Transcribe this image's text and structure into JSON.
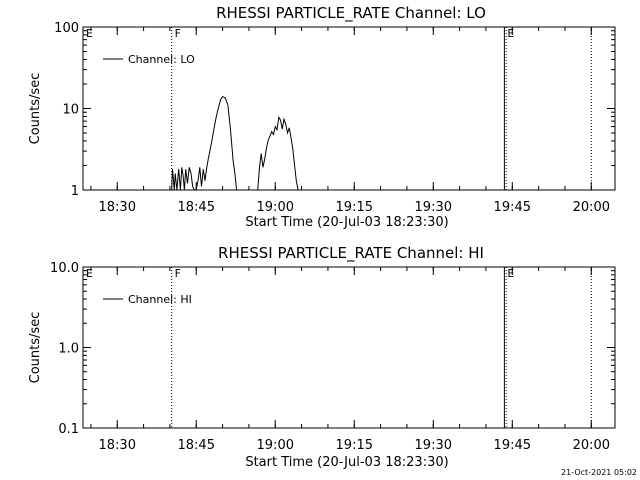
{
  "timestamp": "21-Oct-2021 05:02",
  "chart_data": [
    {
      "type": "line",
      "title": "RHESSI PARTICLE_RATE Channel: LO",
      "xlabel": "Start Time (20-Jul-03 18:23:30)",
      "ylabel": "Counts/sec",
      "yscale": "log",
      "ylim": [
        1,
        100
      ],
      "yticks": [
        "1",
        "10",
        "100"
      ],
      "xlim": [
        "18:23:30",
        "20:04:30"
      ],
      "xticks": [
        "18:30",
        "18:45",
        "19:00",
        "19:15",
        "19:30",
        "19:45",
        "20:00"
      ],
      "legend": "Channel: LO",
      "legend_position": "top-left",
      "grid": false,
      "markers": [
        {
          "label": "E",
          "time": "18:23:30",
          "style": "solid"
        },
        {
          "label": "F",
          "time": "18:40:20",
          "style": "dotted"
        },
        {
          "label": "E",
          "time": "19:43:30",
          "style": "solid"
        },
        {
          "label": "",
          "time": "19:43:50",
          "style": "dotted"
        },
        {
          "label": "",
          "time": "20:00:00",
          "style": "dotted"
        }
      ],
      "series": [
        {
          "name": "Channel: LO",
          "x": [
            "18:40:20",
            "18:40:30",
            "18:40:50",
            "18:41:00",
            "18:41:20",
            "18:41:40",
            "18:42:00",
            "18:42:15",
            "18:42:30",
            "18:42:45",
            "18:43:00",
            "18:43:20",
            "18:43:40",
            "18:44:00",
            "18:44:20",
            "18:44:40",
            "18:45:00",
            "18:45:20",
            "18:45:40",
            "18:46:00",
            "18:46:20",
            "18:46:40",
            "18:47:00",
            "18:47:20",
            "18:47:40",
            "18:48:00",
            "18:48:20",
            "18:48:40",
            "18:49:00",
            "18:49:20",
            "18:49:40",
            "18:50:00",
            "18:50:30",
            "18:51:00",
            "18:51:30",
            "18:52:00",
            "18:52:20",
            "18:52:40",
            "18:53:00",
            "18:53:20",
            "18:53:40",
            "18:54:00",
            "18:54:20",
            "18:54:40",
            "18:55:00",
            "18:56:40",
            "18:57:00",
            "18:57:20",
            "18:57:40",
            "18:58:00",
            "18:58:20",
            "18:58:40",
            "18:59:00",
            "18:59:20",
            "18:59:40",
            "19:00:00",
            "19:00:20",
            "19:00:40",
            "19:01:00",
            "19:01:20",
            "19:01:40",
            "19:02:00",
            "19:02:20",
            "19:02:40",
            "19:03:00",
            "19:03:20",
            "19:03:40",
            "19:04:00",
            "19:04:20"
          ],
          "values": [
            1,
            1.8,
            1,
            1.6,
            1,
            1.8,
            1,
            1.9,
            1.5,
            1,
            1.8,
            1.2,
            1.9,
            1.6,
            1.1,
            1,
            1,
            1.3,
            1.9,
            1.1,
            1.8,
            1.3,
            1.9,
            2.5,
            3.2,
            4.1,
            5.5,
            7.2,
            9,
            11,
            13,
            14,
            13.5,
            11,
            5.5,
            2.3,
            1.6,
            1,
            1,
            1,
            1,
            1,
            1,
            1,
            1,
            1,
            1.9,
            2.8,
            1.9,
            2.4,
            3.3,
            4.1,
            4.6,
            5.2,
            4.8,
            6,
            5.5,
            7.8,
            7.2,
            5.6,
            7.4,
            6.4,
            5,
            5.8,
            4.3,
            3.2,
            2,
            1.3,
            1
          ]
        }
      ]
    },
    {
      "type": "line",
      "title": "RHESSI PARTICLE_RATE Channel: HI",
      "xlabel": "Start Time (20-Jul-03 18:23:30)",
      "ylabel": "Counts/sec",
      "yscale": "log",
      "ylim": [
        0.1,
        10
      ],
      "yticks": [
        "0.1",
        "1.0",
        "10.0"
      ],
      "xlim": [
        "18:23:30",
        "20:04:30"
      ],
      "xticks": [
        "18:30",
        "18:45",
        "19:00",
        "19:15",
        "19:30",
        "19:45",
        "20:00"
      ],
      "legend": "Channel: HI",
      "legend_position": "top-left",
      "grid": false,
      "markers": [
        {
          "label": "E",
          "time": "18:23:30",
          "style": "solid"
        },
        {
          "label": "F",
          "time": "18:40:20",
          "style": "dotted"
        },
        {
          "label": "E",
          "time": "19:43:30",
          "style": "solid"
        },
        {
          "label": "",
          "time": "19:43:50",
          "style": "dotted"
        },
        {
          "label": "",
          "time": "20:00:00",
          "style": "dotted"
        }
      ],
      "series": [
        {
          "name": "Channel: HI",
          "x": [],
          "values": []
        }
      ]
    }
  ]
}
